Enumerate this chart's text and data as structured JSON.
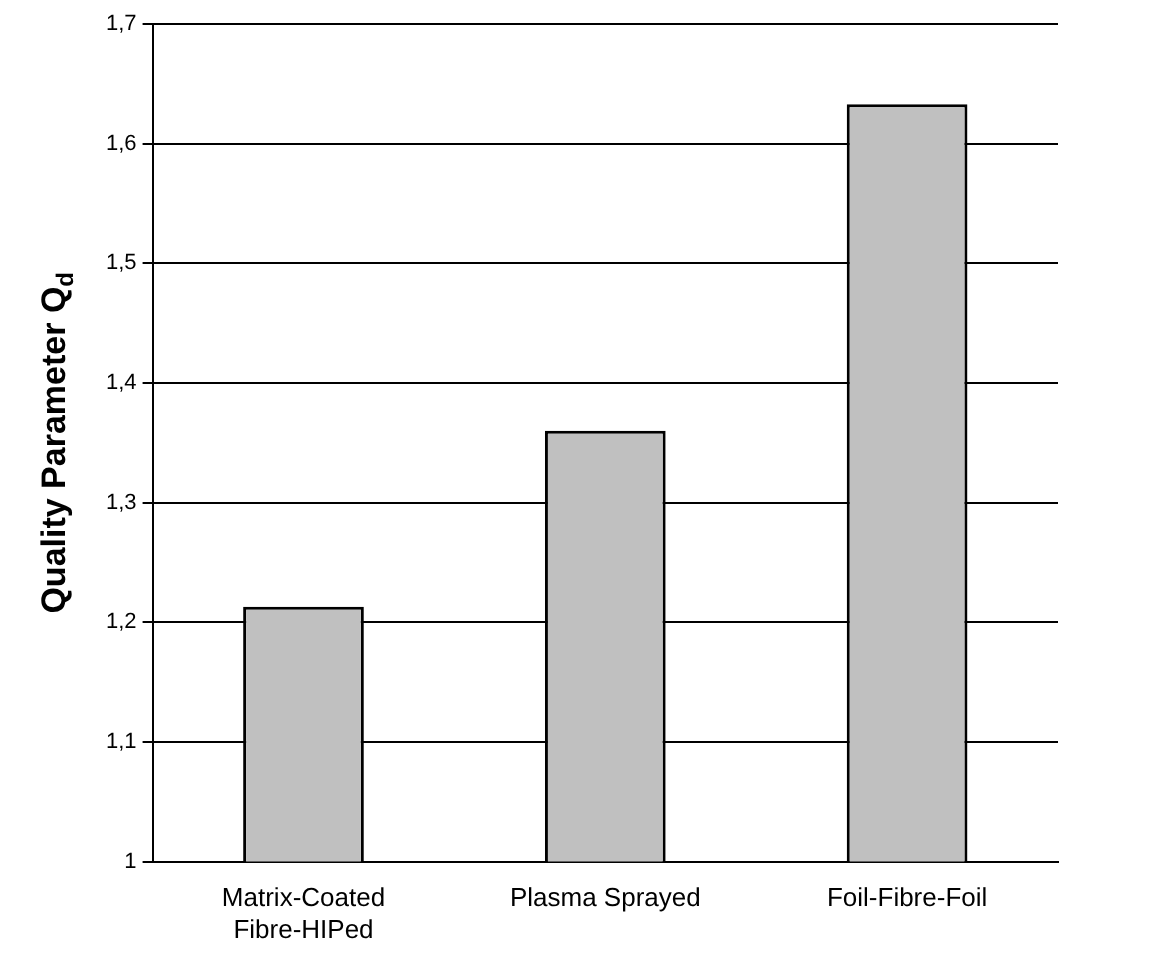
{
  "chart_data": {
    "type": "bar",
    "ylabel": "Quality Parameter Q$_{d}$",
    "categories": [
      "Matrix-Coated Fibre-HIPed",
      "Plasma Sprayed",
      "Foil-Fibre-Foil"
    ],
    "values": [
      1.213,
      1.36,
      1.633
    ],
    "color": "#c0c0c0",
    "ylim": [
      1,
      1.7
    ],
    "yticks": [
      1,
      {
        "value": 1.1,
        "label": "1,1"
      },
      {
        "value": 1.2,
        "label": "1,2"
      },
      {
        "value": 1.3,
        "label": "1,3"
      },
      {
        "value": 1.4,
        "label": "1,4"
      },
      {
        "value": 1.5,
        "label": "1,5"
      },
      {
        "value": 1.6,
        "label": "1,6"
      },
      {
        "value": 1.7,
        "label": "1,7"
      }
    ],
    "grid": "y",
    "legend": false
  }
}
